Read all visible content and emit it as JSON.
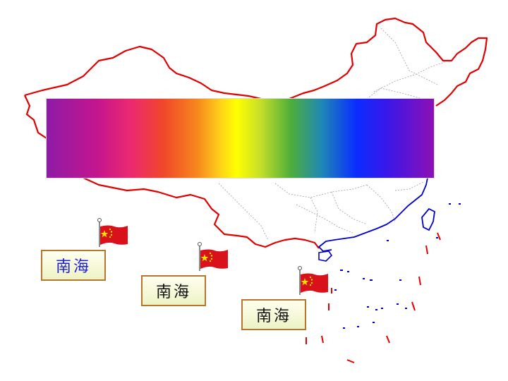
{
  "slide": {
    "labels": [
      {
        "text": "南海"
      },
      {
        "text": "南海"
      },
      {
        "text": "南海"
      }
    ]
  },
  "colors": {
    "border_outline": "#e30000",
    "coastline": "#0000cc",
    "province_lines": "#b0b0b0",
    "flag_red": "#d8111b",
    "flag_star": "#ffde00",
    "label_border": "#b7762f",
    "selected_label_text": "#1d1de0"
  },
  "icons": [
    "flag-icon",
    "flag-pole-icon"
  ]
}
